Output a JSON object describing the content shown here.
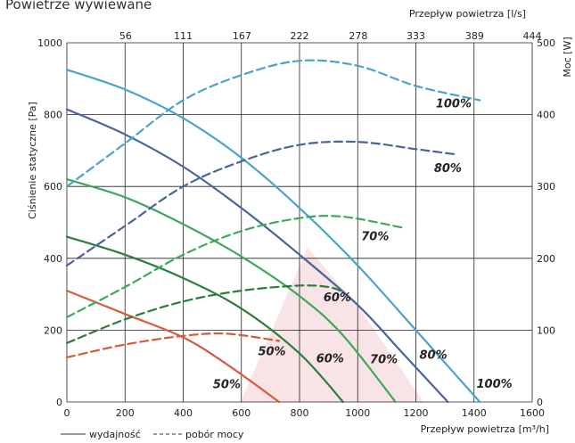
{
  "chart_data": {
    "type": "line",
    "title": "Powietrze wywiewane",
    "x_bottom": {
      "label": "Przepływ powietrza [m³/h]",
      "ticks": [
        0,
        200,
        400,
        600,
        800,
        1000,
        1200,
        1400,
        1600
      ],
      "range": [
        0,
        1600
      ]
    },
    "x_top": {
      "label": "Przepływ powietrza [l/s]",
      "ticks": [
        0,
        56,
        111,
        167,
        222,
        278,
        333,
        389,
        444
      ],
      "range": [
        0,
        444
      ]
    },
    "y_left": {
      "label": "Ciśnienie statyczne [Pa]",
      "ticks": [
        0,
        200,
        400,
        600,
        800,
        1000
      ],
      "range": [
        0,
        1000
      ]
    },
    "y_right": {
      "label": "Moc [W]",
      "ticks": [
        0,
        100,
        200,
        300,
        400,
        500
      ],
      "range": [
        0,
        500
      ]
    },
    "grid": true,
    "legend": {
      "position": "bottom-left",
      "entries": [
        {
          "label": "wydajność",
          "style": "solid"
        },
        {
          "label": "pobór mocy",
          "style": "dashed"
        }
      ]
    },
    "series": [
      {
        "name": "100%",
        "kind": "wydajność",
        "color": "#4aa3c8",
        "label_at": [
          1470,
          40
        ],
        "points": [
          [
            0,
            925
          ],
          [
            200,
            870
          ],
          [
            400,
            790
          ],
          [
            600,
            680
          ],
          [
            800,
            540
          ],
          [
            1000,
            380
          ],
          [
            1200,
            200
          ],
          [
            1420,
            0
          ]
        ]
      },
      {
        "name": "80%",
        "kind": "wydajność",
        "color": "#4a6499",
        "label_at": [
          1260,
          120
        ],
        "points": [
          [
            0,
            815
          ],
          [
            200,
            745
          ],
          [
            400,
            655
          ],
          [
            600,
            540
          ],
          [
            800,
            410
          ],
          [
            1000,
            270
          ],
          [
            1150,
            140
          ],
          [
            1310,
            0
          ]
        ]
      },
      {
        "name": "70%",
        "kind": "wydajność",
        "color": "#3ea85c",
        "label_at": [
          1090,
          108
        ],
        "points": [
          [
            0,
            620
          ],
          [
            200,
            570
          ],
          [
            400,
            495
          ],
          [
            600,
            405
          ],
          [
            800,
            295
          ],
          [
            950,
            185
          ],
          [
            1130,
            0
          ]
        ]
      },
      {
        "name": "60%",
        "kind": "wydajność",
        "color": "#2c7e3e",
        "label_at": [
          905,
          110
        ],
        "points": [
          [
            0,
            460
          ],
          [
            200,
            410
          ],
          [
            400,
            345
          ],
          [
            600,
            260
          ],
          [
            800,
            135
          ],
          [
            950,
            0
          ]
        ]
      },
      {
        "name": "50%",
        "kind": "wydajność",
        "color": "#d85a3c",
        "label_at": [
          550,
          38
        ],
        "points": [
          [
            0,
            310
          ],
          [
            200,
            245
          ],
          [
            400,
            180
          ],
          [
            550,
            105
          ],
          [
            730,
            0
          ]
        ]
      },
      {
        "name": "100%",
        "kind": "pobór mocy",
        "color": "#4aa3c8",
        "label_at": [
          1330,
          410
        ],
        "points": [
          [
            0,
            300
          ],
          [
            200,
            360
          ],
          [
            400,
            420
          ],
          [
            600,
            455
          ],
          [
            800,
            475
          ],
          [
            1000,
            468
          ],
          [
            1200,
            440
          ],
          [
            1420,
            420
          ]
        ]
      },
      {
        "name": "80%",
        "kind": "pobór mocy",
        "color": "#4a6499",
        "label_at": [
          1310,
          320
        ],
        "points": [
          [
            0,
            190
          ],
          [
            200,
            245
          ],
          [
            400,
            300
          ],
          [
            600,
            335
          ],
          [
            800,
            358
          ],
          [
            1000,
            362
          ],
          [
            1200,
            352
          ],
          [
            1330,
            345
          ]
        ]
      },
      {
        "name": "70%",
        "kind": "pobór mocy",
        "color": "#3ea85c",
        "label_at": [
          1060,
          225
        ],
        "points": [
          [
            0,
            118
          ],
          [
            200,
            160
          ],
          [
            400,
            205
          ],
          [
            600,
            238
          ],
          [
            800,
            256
          ],
          [
            950,
            258
          ],
          [
            1150,
            243
          ]
        ]
      },
      {
        "name": "60%",
        "kind": "pobór mocy",
        "color": "#2c7e3e",
        "label_at": [
          930,
          140
        ],
        "points": [
          [
            0,
            82
          ],
          [
            200,
            115
          ],
          [
            400,
            140
          ],
          [
            600,
            155
          ],
          [
            800,
            162
          ],
          [
            900,
            160
          ],
          [
            950,
            153
          ]
        ]
      },
      {
        "name": "50%",
        "kind": "pobór mocy",
        "color": "#d85a3c",
        "label_at": [
          705,
          65
        ],
        "points": [
          [
            0,
            62
          ],
          [
            200,
            80
          ],
          [
            400,
            92
          ],
          [
            550,
            95
          ],
          [
            730,
            85
          ]
        ]
      }
    ]
  }
}
